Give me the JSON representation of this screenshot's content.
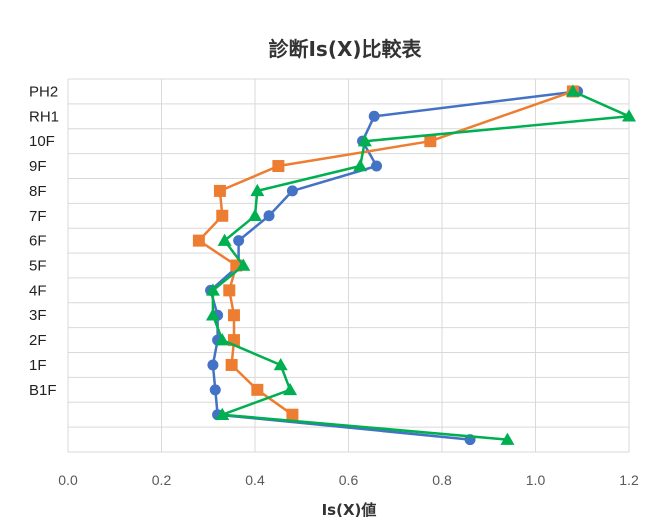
{
  "chart_data": {
    "type": "line",
    "title": "診断Is(X)比較表",
    "xlabel": "Is(X)値",
    "ylabel": "",
    "xlim": [
      0,
      1.2
    ],
    "x_ticks": [
      "0.0",
      "0.2",
      "0.4",
      "0.6",
      "0.8",
      "1.0",
      "1.2"
    ],
    "categories": [
      "",
      "",
      "B1F",
      "1F",
      "2F",
      "3F",
      "4F",
      "5F",
      "6F",
      "7F",
      "8F",
      "9F",
      "10F",
      "RH1",
      "PH2"
    ],
    "grid": true,
    "legend": "none",
    "series": [
      {
        "color": "#4472C4",
        "marker": "circle",
        "values": [
          0.86,
          0.32,
          0.315,
          0.31,
          0.32,
          0.32,
          0.305,
          0.365,
          0.365,
          0.43,
          0.48,
          0.66,
          0.63,
          0.655,
          1.09
        ]
      },
      {
        "color": "#ED7D31",
        "marker": "square",
        "values": [
          null,
          0.48,
          0.405,
          0.35,
          0.355,
          0.355,
          0.345,
          0.36,
          0.28,
          0.33,
          0.325,
          0.45,
          0.775,
          null,
          1.08
        ]
      },
      {
        "color": "#00B050",
        "marker": "triangle",
        "values": [
          0.94,
          0.33,
          0.475,
          0.455,
          0.33,
          0.31,
          0.31,
          0.375,
          0.335,
          0.4,
          0.405,
          0.625,
          0.635,
          1.2,
          1.08
        ]
      }
    ]
  }
}
